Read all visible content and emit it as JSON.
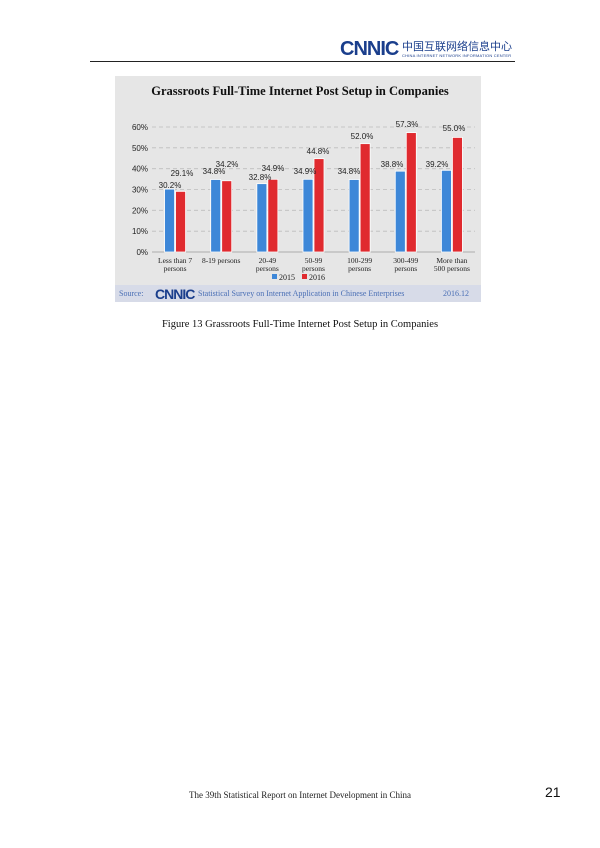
{
  "header": {
    "logo_text": "CNNIC",
    "logo_cn": "中国互联网络信息中心",
    "logo_sub": "CHINA INTERNET NETWORK INFORMATION CENTER"
  },
  "chart_data": {
    "type": "bar",
    "title": "Grassroots Full-Time Internet Post Setup in Companies",
    "categories": [
      [
        "Less than 7",
        "persons"
      ],
      [
        "8-19 persons",
        ""
      ],
      [
        "20-49",
        "persons"
      ],
      [
        "50-99",
        "persons"
      ],
      [
        "100-299",
        "persons"
      ],
      [
        "300-499",
        "persons"
      ],
      [
        "More than",
        "500 persons"
      ]
    ],
    "series": [
      {
        "name": "2015",
        "values": [
          30.2,
          34.8,
          32.8,
          34.9,
          34.8,
          38.8,
          39.2
        ],
        "labels": [
          "30.2%",
          "34.8%",
          "32.8%",
          "34.9%",
          "34.8%",
          "38.8%",
          "39.2%"
        ],
        "color": "#3d87d8"
      },
      {
        "name": "2016",
        "values": [
          29.1,
          34.2,
          34.9,
          44.8,
          52.0,
          57.3,
          55.0
        ],
        "labels": [
          "29.1%",
          "34.2%",
          "34.9%",
          "44.8%",
          "52.0%",
          "57.3%",
          "55.0%"
        ],
        "color": "#e02a2f"
      }
    ],
    "yticks": [
      "0%",
      "10%",
      "20%",
      "30%",
      "40%",
      "50%",
      "60%"
    ],
    "ylim": [
      0,
      60
    ],
    "grid": true,
    "legend": "bottom"
  },
  "source": {
    "label": "Source:",
    "logo": "CNNIC",
    "text": "Statistical Survey on Internet Application in Chinese Enterprises",
    "date": "2016.12"
  },
  "caption": "Figure 13 Grassroots Full-Time Internet Post Setup in Companies",
  "footer": "The 39th Statistical Report on Internet Development in China",
  "page_number": "21"
}
